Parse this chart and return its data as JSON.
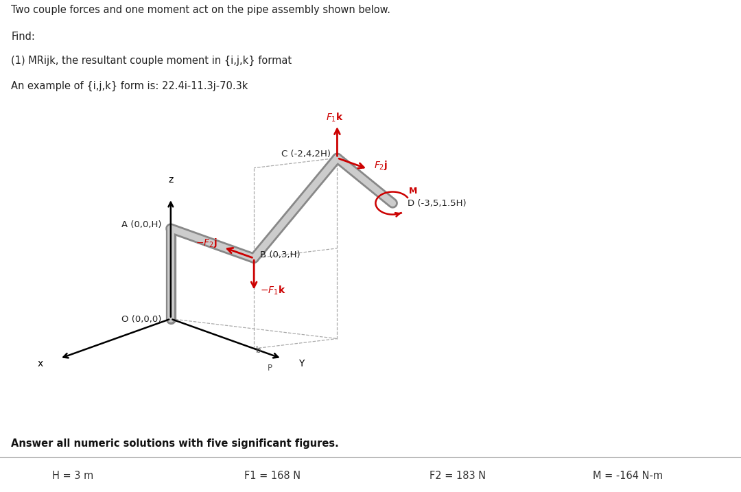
{
  "bg_color": "#ffffff",
  "title_lines": [
    "Two couple forces and one moment act on the pipe assembly shown below.",
    "Find:",
    "(1) MRijk, the resultant couple moment in {i,j,k} format",
    "An example of {i,j,k} form is: 22.4i-11.3j-70.3k"
  ],
  "bottom_bold": "Answer all numeric solutions with five significant figures.",
  "params": [
    "H = 3 m",
    "F1 = 168 N",
    "F2 = 183 N",
    "M = -164 N-m"
  ],
  "force_color": "#cc0000",
  "dashed_color": "#aaaaaa",
  "pipe_color_outer": "#888888",
  "pipe_color_inner": "#cccccc",
  "axis_color": "#000000",
  "label_color": "#222222"
}
